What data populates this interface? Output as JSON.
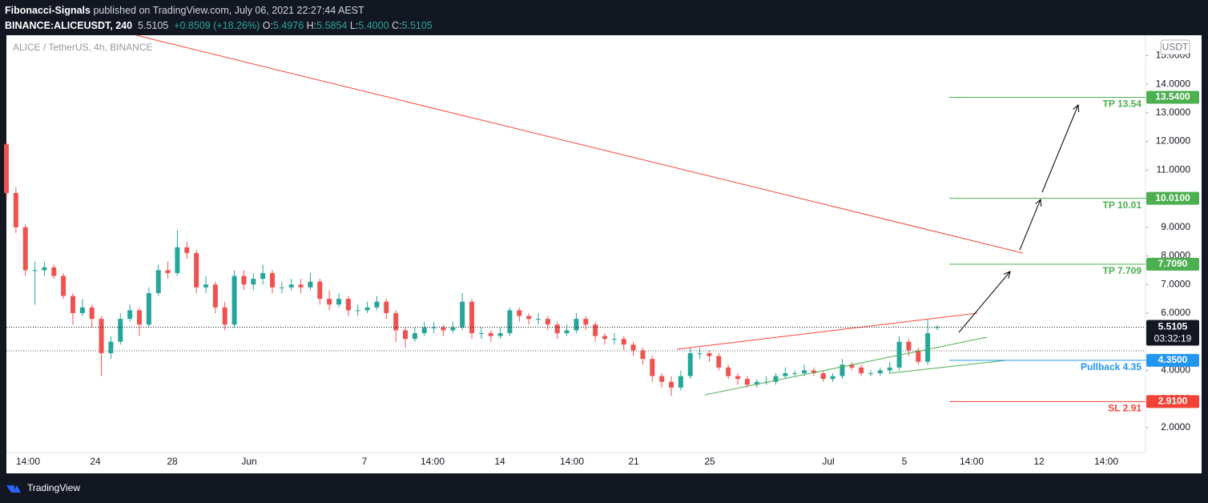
{
  "header": {
    "author": "Fibonacci-Signals",
    "published": "published on TradingView.com, July 06, 2021 22:27:44 AEST",
    "symbol": "BINANCE:ALICEUSDT, 240",
    "last": "5.5105",
    "change": "+0.8509 (+18.26%)",
    "o_label": "O:",
    "o": "5.4976",
    "h_label": "H:",
    "h": "5.5854",
    "l_label": "L:",
    "l": "5.4000",
    "c_label": "C:",
    "c": "5.5105"
  },
  "footer": {
    "brand": "TradingView"
  },
  "chart_data": {
    "type": "candlestick",
    "title": "ALICE / TetherUS, 4h, BINANCE",
    "currency": "USDT",
    "up_color": "#26a69a",
    "down_color": "#ef5350",
    "ylim": [
      0.43,
      15.71
    ],
    "yticks": [
      {
        "value": 2,
        "label": "2.0000"
      },
      {
        "value": 3,
        "label": "3.0000"
      },
      {
        "value": 4,
        "label": "4.0000"
      },
      {
        "value": 5,
        "label": "5.0000"
      },
      {
        "value": 6,
        "label": "6.0000"
      },
      {
        "value": 7,
        "label": "7.0000"
      },
      {
        "value": 8,
        "label": "8.0000"
      },
      {
        "value": 9,
        "label": "9.0000"
      },
      {
        "value": 10,
        "label": "10.0000"
      },
      {
        "value": 11,
        "label": "11.0000"
      },
      {
        "value": 12,
        "label": "12.0000"
      },
      {
        "value": 13,
        "label": "13.0000"
      },
      {
        "value": 14,
        "label": "14.0000"
      },
      {
        "value": 15,
        "label": "15.0000"
      }
    ],
    "x_labels": [
      "14:00",
      "24",
      "28",
      "Jun",
      "7",
      "14:00",
      "14",
      "14:00",
      "21",
      "25",
      "Jul",
      "5",
      "14:00",
      "12",
      "14:00"
    ],
    "current": {
      "value": 5.5105,
      "label": "5.5105",
      "timer": "03:32:19"
    },
    "levels": [
      {
        "name": "TP 13.54",
        "value": 13.54,
        "label": "13.5400",
        "color": "#4caf50"
      },
      {
        "name": "TP 10.01",
        "value": 10.01,
        "label": "10.0100",
        "color": "#4caf50"
      },
      {
        "name": "TP 7.709",
        "value": 7.709,
        "label": "7.7090",
        "color": "#4caf50"
      },
      {
        "name": "Pullback 4.35",
        "value": 4.35,
        "label": "4.3500",
        "color": "#2196f3"
      },
      {
        "name": "SL 2.91",
        "value": 2.91,
        "label": "2.9100",
        "color": "#f44336"
      }
    ],
    "ohlc": [
      [
        11.9,
        12.0,
        10.0,
        10.2
      ],
      [
        10.2,
        10.4,
        8.8,
        9.0
      ],
      [
        9.0,
        9.1,
        7.3,
        7.5
      ],
      [
        7.5,
        7.8,
        6.3,
        7.5
      ],
      [
        7.5,
        7.8,
        7.3,
        7.6
      ],
      [
        7.6,
        7.7,
        7.2,
        7.3
      ],
      [
        7.3,
        7.4,
        6.5,
        6.6
      ],
      [
        6.6,
        6.7,
        5.6,
        6.0
      ],
      [
        6.0,
        6.5,
        5.9,
        6.2
      ],
      [
        6.2,
        6.3,
        5.5,
        5.8
      ],
      [
        5.8,
        5.9,
        3.8,
        4.6
      ],
      [
        4.6,
        5.2,
        4.4,
        5.0
      ],
      [
        5.0,
        6.0,
        4.9,
        5.8
      ],
      [
        5.8,
        6.3,
        5.7,
        6.1
      ],
      [
        6.1,
        6.2,
        5.2,
        5.6
      ],
      [
        5.6,
        6.9,
        5.5,
        6.7
      ],
      [
        6.7,
        7.7,
        6.6,
        7.5
      ],
      [
        7.5,
        7.8,
        7.2,
        7.4
      ],
      [
        7.4,
        8.9,
        7.3,
        8.3
      ],
      [
        8.3,
        8.5,
        7.9,
        8.1
      ],
      [
        8.1,
        8.2,
        6.7,
        6.9
      ],
      [
        6.9,
        7.3,
        6.7,
        7.0
      ],
      [
        7.0,
        7.1,
        6.0,
        6.2
      ],
      [
        6.2,
        6.4,
        5.4,
        5.6
      ],
      [
        5.6,
        7.5,
        5.5,
        7.3
      ],
      [
        7.3,
        7.5,
        6.8,
        7.0
      ],
      [
        7.0,
        7.4,
        6.8,
        7.2
      ],
      [
        7.2,
        7.7,
        7.0,
        7.4
      ],
      [
        7.4,
        7.5,
        6.7,
        6.9
      ],
      [
        6.9,
        7.1,
        6.7,
        6.9
      ],
      [
        6.9,
        7.2,
        6.8,
        7.0
      ],
      [
        7.0,
        7.2,
        6.7,
        6.9
      ],
      [
        6.9,
        7.4,
        6.8,
        7.1
      ],
      [
        7.1,
        7.2,
        6.3,
        6.5
      ],
      [
        6.5,
        6.8,
        6.1,
        6.3
      ],
      [
        6.3,
        6.7,
        6.2,
        6.5
      ],
      [
        6.5,
        6.6,
        5.9,
        6.1
      ],
      [
        6.1,
        6.3,
        5.9,
        6.1
      ],
      [
        6.1,
        6.4,
        6.0,
        6.2
      ],
      [
        6.2,
        6.6,
        6.1,
        6.4
      ],
      [
        6.4,
        6.5,
        5.8,
        6.0
      ],
      [
        6.0,
        6.1,
        5.0,
        5.4
      ],
      [
        5.4,
        5.5,
        4.8,
        5.1
      ],
      [
        5.1,
        5.5,
        5.0,
        5.3
      ],
      [
        5.3,
        5.7,
        5.2,
        5.5
      ],
      [
        5.5,
        5.7,
        5.3,
        5.5
      ],
      [
        5.5,
        5.6,
        5.2,
        5.4
      ],
      [
        5.4,
        5.7,
        5.3,
        5.5
      ],
      [
        5.5,
        6.7,
        5.4,
        6.4
      ],
      [
        6.4,
        6.5,
        5.1,
        5.3
      ],
      [
        5.3,
        5.5,
        5.1,
        5.3
      ],
      [
        5.3,
        5.4,
        5.0,
        5.2
      ],
      [
        5.2,
        5.5,
        5.1,
        5.3
      ],
      [
        5.3,
        6.2,
        5.2,
        6.1
      ],
      [
        6.1,
        6.2,
        5.7,
        5.9
      ],
      [
        5.9,
        6.0,
        5.6,
        5.8
      ],
      [
        5.8,
        6.0,
        5.6,
        5.8
      ],
      [
        5.8,
        5.9,
        5.4,
        5.6
      ],
      [
        5.6,
        5.7,
        5.1,
        5.3
      ],
      [
        5.3,
        5.6,
        5.2,
        5.4
      ],
      [
        5.4,
        6.0,
        5.3,
        5.8
      ],
      [
        5.8,
        5.9,
        5.4,
        5.6
      ],
      [
        5.6,
        5.7,
        5.0,
        5.2
      ],
      [
        5.2,
        5.3,
        4.9,
        5.1
      ],
      [
        5.1,
        5.3,
        4.9,
        5.1
      ],
      [
        5.1,
        5.2,
        4.7,
        4.9
      ],
      [
        4.9,
        5.0,
        4.5,
        4.7
      ],
      [
        4.7,
        4.8,
        4.2,
        4.4
      ],
      [
        4.4,
        4.5,
        3.6,
        3.8
      ],
      [
        3.8,
        3.9,
        3.4,
        3.6
      ],
      [
        3.6,
        3.8,
        3.1,
        3.4
      ],
      [
        3.4,
        4.0,
        3.3,
        3.8
      ],
      [
        3.8,
        4.8,
        3.7,
        4.6
      ],
      [
        4.6,
        4.8,
        4.4,
        4.6
      ],
      [
        4.6,
        4.7,
        4.3,
        4.5
      ],
      [
        4.5,
        4.6,
        4.0,
        4.1
      ],
      [
        4.1,
        4.2,
        3.7,
        3.8
      ],
      [
        3.8,
        3.9,
        3.5,
        3.7
      ],
      [
        3.7,
        3.8,
        3.4,
        3.5
      ],
      [
        3.5,
        3.7,
        3.4,
        3.6
      ],
      [
        3.6,
        3.8,
        3.5,
        3.6
      ],
      [
        3.6,
        3.9,
        3.5,
        3.8
      ],
      [
        3.8,
        4.1,
        3.7,
        3.9
      ],
      [
        3.9,
        4.0,
        3.8,
        3.9
      ],
      [
        3.9,
        4.2,
        3.8,
        4.0
      ],
      [
        4.0,
        4.1,
        3.8,
        3.9
      ],
      [
        3.9,
        4.0,
        3.6,
        3.7
      ],
      [
        3.7,
        3.9,
        3.6,
        3.8
      ],
      [
        3.8,
        4.4,
        3.7,
        4.2
      ],
      [
        4.2,
        4.3,
        4.0,
        4.1
      ],
      [
        4.1,
        4.2,
        3.8,
        3.9
      ],
      [
        3.9,
        4.0,
        3.8,
        3.9
      ],
      [
        3.9,
        4.1,
        3.8,
        4.0
      ],
      [
        4.0,
        4.3,
        3.9,
        4.1
      ],
      [
        4.1,
        5.2,
        4.0,
        5.0
      ],
      [
        5.0,
        5.1,
        4.5,
        4.7
      ],
      [
        4.7,
        4.8,
        4.2,
        4.3
      ],
      [
        4.3,
        5.8,
        4.2,
        5.3
      ],
      [
        5.4976,
        5.5854,
        5.4,
        5.5105
      ]
    ]
  }
}
